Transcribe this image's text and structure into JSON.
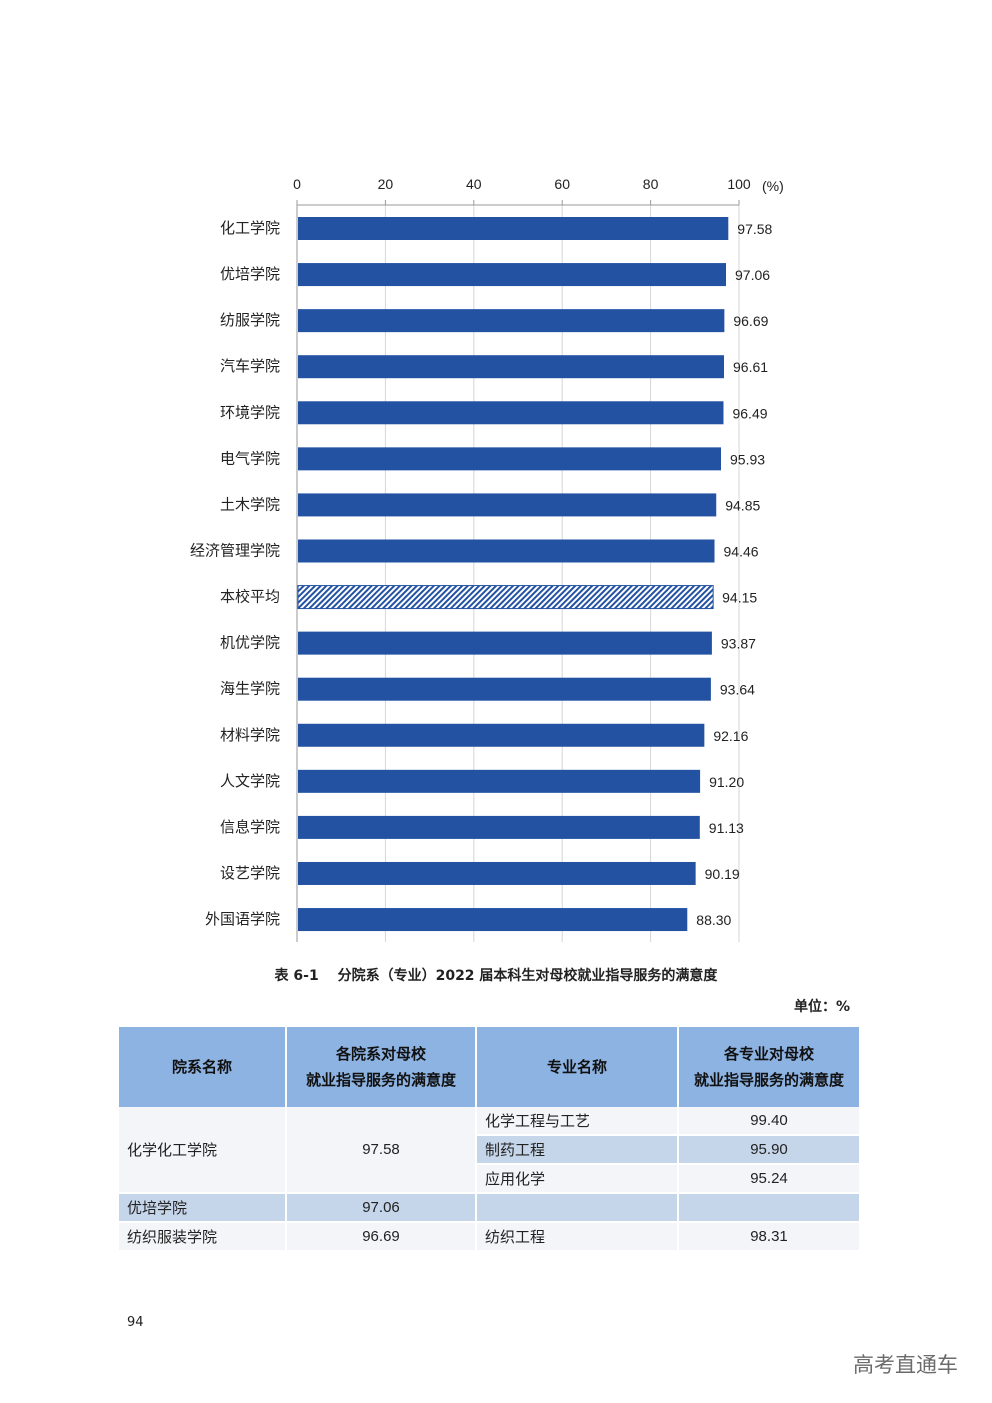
{
  "chart_data": {
    "type": "bar",
    "orientation": "horizontal",
    "categories": [
      "化工学院",
      "优培学院",
      "纺服学院",
      "汽车学院",
      "环境学院",
      "电气学院",
      "土木学院",
      "经济管理学院",
      "本校平均",
      "机优学院",
      "海生学院",
      "材料学院",
      "人文学院",
      "信息学院",
      "设艺学院",
      "外国语学院"
    ],
    "values": [
      97.58,
      97.06,
      96.69,
      96.61,
      96.49,
      95.93,
      94.85,
      94.46,
      94.15,
      93.87,
      93.64,
      92.16,
      91.2,
      91.13,
      90.19,
      88.3
    ],
    "value_labels": [
      "97.58",
      "97.06",
      "96.69",
      "96.61",
      "96.49",
      "95.93",
      "94.85",
      "94.46",
      "94.15",
      "93.87",
      "93.64",
      "92.16",
      "91.20",
      "91.13",
      "90.19",
      "88.30"
    ],
    "highlight_category": "本校平均",
    "xlim": [
      0,
      100
    ],
    "x_ticks": [
      "0",
      "20",
      "40",
      "60",
      "80",
      "100"
    ],
    "x_unit": "(%)",
    "bar_color": "#2352a3",
    "highlight_pattern": "diagonal-hatch"
  },
  "table": {
    "caption": "表 6-1　 分院系（专业）2022 届本科生对母校就业指导服务的满意度",
    "unit": "单位：%",
    "headers": [
      "院系名称",
      "各院系对母校\n就业指导服务的满意度",
      "专业名称",
      "各专业对母校\n就业指导服务的满意度"
    ],
    "rows": [
      {
        "college": "化学化工学院",
        "college_value": "97.58",
        "majors": [
          {
            "name": "化学工程与工艺",
            "value": "99.40"
          },
          {
            "name": "制药工程",
            "value": "95.90"
          },
          {
            "name": "应用化学",
            "value": "95.24"
          }
        ]
      },
      {
        "college": "优培学院",
        "college_value": "97.06",
        "majors": [
          {
            "name": "",
            "value": ""
          }
        ]
      },
      {
        "college": "纺织服装学院",
        "college_value": "96.69",
        "majors": [
          {
            "name": "纺织工程",
            "value": "98.31"
          }
        ]
      }
    ]
  },
  "page_number": "94",
  "watermark": "高考直通车"
}
